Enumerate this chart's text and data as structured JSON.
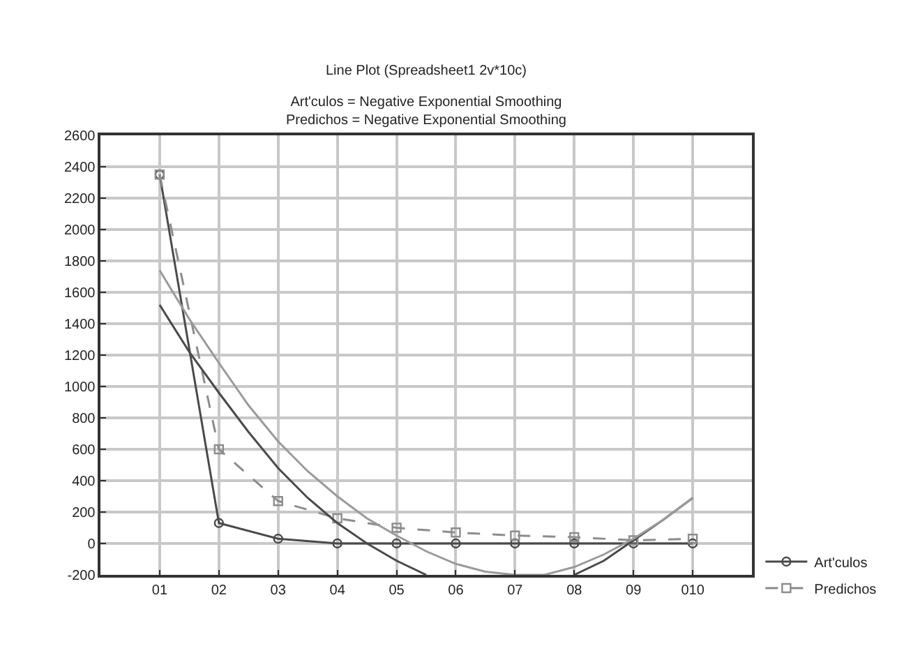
{
  "chart_data": {
    "type": "line",
    "title": "Line Plot (Spreadsheet1 2v*10c)",
    "subtitle": "Art'culos = Negative Exponential Smoothing\nPredichos = Negative Exponential Smoothing",
    "xlim": [
      0,
      11
    ],
    "xticks": [
      {
        "value": 1,
        "label": "01"
      },
      {
        "value": 2,
        "label": "02"
      },
      {
        "value": 3,
        "label": "03"
      },
      {
        "value": 4,
        "label": "04"
      },
      {
        "value": 5,
        "label": "05"
      },
      {
        "value": 6,
        "label": "06"
      },
      {
        "value": 7,
        "label": "07"
      },
      {
        "value": 8,
        "label": "08"
      },
      {
        "value": 9,
        "label": "09"
      },
      {
        "value": 10,
        "label": "010"
      }
    ],
    "ylim": [
      -200,
      2600
    ],
    "yticks": [
      -200,
      0,
      200,
      400,
      600,
      800,
      1000,
      1200,
      1400,
      1600,
      1800,
      2000,
      2200,
      2400,
      2600
    ],
    "grid": true,
    "legend": "bottom right",
    "series": [
      {
        "name": "Art'culos",
        "color": "#4a4a4a",
        "marker": "circle",
        "line_style": "solid",
        "x": [
          1,
          2,
          3,
          4,
          5,
          6,
          7,
          8,
          9,
          10
        ],
        "values": [
          2350,
          130,
          30,
          0,
          0,
          0,
          0,
          0,
          0,
          0
        ]
      },
      {
        "name": "Predichos",
        "color": "#8c8c8c",
        "marker": "square",
        "line_style": "dashed",
        "x": [
          1,
          2,
          3,
          4,
          5,
          6,
          7,
          8,
          9,
          10
        ],
        "values": [
          2350,
          600,
          270,
          160,
          100,
          70,
          50,
          40,
          20,
          30
        ]
      },
      {
        "color": "#4a4a4a",
        "marker": "none",
        "line_style": "solid",
        "x": [
          1,
          1.5,
          2,
          2.5,
          3,
          3.5,
          4,
          4.5,
          5,
          5.5,
          6.5,
          8,
          8.5,
          9,
          9.5,
          10
        ],
        "values": [
          1520,
          1220,
          960,
          710,
          480,
          290,
          130,
          0,
          -110,
          -200,
          null,
          -200,
          -110,
          20,
          150,
          290
        ]
      },
      {
        "color": "#9a9a9a",
        "marker": "none",
        "line_style": "solid",
        "x": [
          1,
          1.5,
          2,
          2.5,
          3,
          3.5,
          4,
          4.5,
          5,
          5.5,
          6,
          6.5,
          7,
          7.5,
          8,
          8.5,
          9,
          9.5,
          10
        ],
        "values": [
          1740,
          1430,
          1150,
          880,
          650,
          460,
          300,
          160,
          50,
          -50,
          -130,
          -180,
          -200,
          -200,
          -150,
          -70,
          30,
          150,
          290
        ]
      }
    ]
  }
}
